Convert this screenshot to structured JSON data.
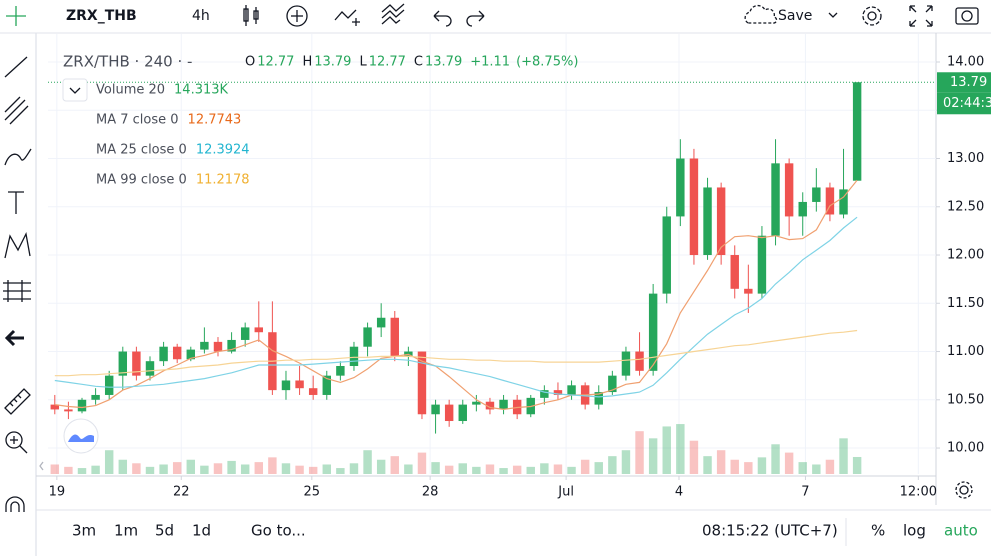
{
  "toolbar": {
    "symbol": "ZRX_THB",
    "interval": "4h",
    "save": "Save"
  },
  "bottom_bar": {
    "ranges": [
      "3m",
      "1m",
      "5d",
      "1d"
    ],
    "goto": "Go to...",
    "clock": "08:15:22 (UTC+7)",
    "options": [
      "%",
      "log",
      "auto"
    ]
  },
  "chart_data": {
    "type": "candlestick",
    "legend_title": "ZRX/THB · 240 · -",
    "ohlc_letters": [
      "O",
      "H",
      "L",
      "C"
    ],
    "change": "+1.11",
    "change_pct": "(+8.75%)",
    "countdown": "02:44:3",
    "up_color": "#26a65b",
    "down_color": "#ef5350",
    "open": [
      10.45,
      10.4,
      10.38,
      10.5,
      10.55,
      10.75,
      11.0,
      10.75,
      10.9,
      11.05,
      10.92,
      11.02,
      11.1,
      11.0,
      11.12,
      11.25,
      11.2,
      10.6,
      10.7,
      10.62,
      10.55,
      10.75,
      10.85,
      11.05,
      11.25,
      11.35,
      10.95,
      11.0,
      10.35,
      10.45,
      10.28,
      10.45,
      10.48,
      10.4,
      10.5,
      10.35,
      10.52,
      10.6,
      10.55,
      10.65,
      10.45,
      10.58,
      10.75,
      11.0,
      10.8,
      11.6,
      12.4,
      13.0,
      12.0,
      12.7,
      12.0,
      11.65,
      11.6,
      12.2,
      12.95,
      12.4,
      12.55,
      12.7,
      12.42,
      12.77
    ],
    "high": [
      10.55,
      10.48,
      10.52,
      10.62,
      10.8,
      11.05,
      11.05,
      10.95,
      11.1,
      11.08,
      11.05,
      11.25,
      11.15,
      11.2,
      11.3,
      11.52,
      11.52,
      10.8,
      10.85,
      10.75,
      10.8,
      10.9,
      11.1,
      11.3,
      11.5,
      11.42,
      11.05,
      11.0,
      10.5,
      10.5,
      10.5,
      10.55,
      10.52,
      10.55,
      10.55,
      10.55,
      10.65,
      10.68,
      10.7,
      10.68,
      10.65,
      10.8,
      11.05,
      11.2,
      11.7,
      12.5,
      13.2,
      13.1,
      12.8,
      12.75,
      12.1,
      11.9,
      12.3,
      13.2,
      13.0,
      12.65,
      12.9,
      12.75,
      13.1,
      13.79
    ],
    "low": [
      10.35,
      10.3,
      10.36,
      10.45,
      10.5,
      10.6,
      10.7,
      10.7,
      10.85,
      10.88,
      10.9,
      10.98,
      10.95,
      10.98,
      11.05,
      11.1,
      10.55,
      10.5,
      10.55,
      10.5,
      10.5,
      10.7,
      10.8,
      10.95,
      11.15,
      10.9,
      10.85,
      10.3,
      10.15,
      10.22,
      10.25,
      10.38,
      10.35,
      10.35,
      10.3,
      10.32,
      10.45,
      10.5,
      10.5,
      10.4,
      10.4,
      10.55,
      10.7,
      10.75,
      10.75,
      11.5,
      12.3,
      11.9,
      11.95,
      11.9,
      11.55,
      11.4,
      11.55,
      12.1,
      12.2,
      12.2,
      12.45,
      12.35,
      12.38,
      12.77
    ],
    "close": [
      10.4,
      10.38,
      10.5,
      10.55,
      10.75,
      11.0,
      10.75,
      10.9,
      11.05,
      10.92,
      11.02,
      11.1,
      11.0,
      11.12,
      11.25,
      11.2,
      10.6,
      10.7,
      10.62,
      10.55,
      10.75,
      10.85,
      11.05,
      11.25,
      11.35,
      10.95,
      11.0,
      10.35,
      10.45,
      10.28,
      10.45,
      10.48,
      10.4,
      10.5,
      10.35,
      10.52,
      10.6,
      10.55,
      10.65,
      10.45,
      10.58,
      10.75,
      11.0,
      10.8,
      11.6,
      12.4,
      13.0,
      12.0,
      12.7,
      12.0,
      11.65,
      11.6,
      12.2,
      12.95,
      12.4,
      12.55,
      12.7,
      12.42,
      12.68,
      13.79
    ],
    "volume": {
      "name": "Volume 20",
      "value_label": "14.313K",
      "ylim": [
        0,
        365
      ],
      "values": [
        8,
        6,
        5,
        7,
        20,
        12,
        9,
        6,
        8,
        10,
        12,
        7,
        9,
        11,
        8,
        10,
        14,
        9,
        7,
        6,
        8,
        5,
        9,
        20,
        12,
        15,
        8,
        18,
        10,
        7,
        9,
        6,
        8,
        5,
        7,
        6,
        9,
        8,
        6,
        12,
        10,
        15,
        20,
        36,
        30,
        40,
        42,
        28,
        15,
        20,
        12,
        10,
        14,
        25,
        18,
        10,
        8,
        12,
        30,
        14.313
      ]
    },
    "series": [
      {
        "name": "MA 7 close 0",
        "color": "#f0a070",
        "label_color": "#e8691a",
        "values": [
          10.45,
          10.43,
          10.42,
          10.44,
          10.5,
          10.6,
          10.65,
          10.72,
          10.8,
          10.86,
          10.93,
          10.96,
          11.0,
          11.02,
          11.07,
          11.12,
          11.01,
          10.95,
          10.88,
          10.8,
          10.72,
          10.68,
          10.73,
          10.82,
          10.93,
          10.95,
          10.97,
          10.9,
          10.85,
          10.74,
          10.62,
          10.5,
          10.42,
          10.4,
          10.42,
          10.43,
          10.47,
          10.5,
          10.55,
          10.55,
          10.56,
          10.6,
          10.66,
          10.68,
          10.86,
          11.08,
          11.4,
          11.62,
          11.84,
          12.08,
          12.19,
          12.2,
          12.18,
          12.2,
          12.16,
          12.17,
          12.26,
          12.51,
          12.6,
          12.7743
        ]
      },
      {
        "name": "MA 25 close 0",
        "color": "#7fd3e6",
        "label_color": "#22b5d0",
        "values": [
          10.7,
          10.68,
          10.66,
          10.64,
          10.63,
          10.63,
          10.64,
          10.65,
          10.66,
          10.68,
          10.7,
          10.72,
          10.75,
          10.78,
          10.82,
          10.86,
          10.86,
          10.86,
          10.86,
          10.87,
          10.88,
          10.89,
          10.9,
          10.91,
          10.92,
          10.92,
          10.91,
          10.88,
          10.85,
          10.83,
          10.8,
          10.77,
          10.74,
          10.7,
          10.66,
          10.62,
          10.58,
          10.56,
          10.55,
          10.54,
          10.53,
          10.54,
          10.56,
          10.58,
          10.65,
          10.78,
          10.92,
          11.05,
          11.18,
          11.28,
          11.38,
          11.45,
          11.55,
          11.7,
          11.82,
          11.95,
          12.05,
          12.15,
          12.28,
          12.3924
        ]
      },
      {
        "name": "MA 99 close 0",
        "color": "#f7d495",
        "label_color": "#f0b030",
        "values": [
          10.75,
          10.75,
          10.76,
          10.76,
          10.77,
          10.78,
          10.79,
          10.8,
          10.81,
          10.82,
          10.84,
          10.85,
          10.86,
          10.88,
          10.89,
          10.9,
          10.9,
          10.91,
          10.91,
          10.92,
          10.92,
          10.93,
          10.94,
          10.94,
          10.95,
          10.95,
          10.95,
          10.94,
          10.93,
          10.92,
          10.92,
          10.91,
          10.91,
          10.9,
          10.9,
          10.9,
          10.89,
          10.89,
          10.89,
          10.89,
          10.89,
          10.9,
          10.91,
          10.92,
          10.94,
          10.96,
          10.98,
          11.0,
          11.02,
          11.04,
          11.06,
          11.07,
          11.09,
          11.11,
          11.13,
          11.15,
          11.17,
          11.19,
          11.2,
          11.2178
        ]
      }
    ],
    "ylim": [
      9.731,
      14.228
    ],
    "yticks": [
      {
        "value": 14,
        "label": "14.00"
      },
      {
        "value": 13.5,
        "label": "13.50"
      },
      {
        "value": 13,
        "label": "13.00"
      },
      {
        "value": 12.5,
        "label": "12.50"
      },
      {
        "value": 12,
        "label": "12.00"
      },
      {
        "value": 11.5,
        "label": "11.50"
      },
      {
        "value": 11,
        "label": "11.00"
      },
      {
        "value": 10.5,
        "label": "10.50"
      },
      {
        "value": 10,
        "label": "10.00"
      }
    ],
    "xlim": [
      -0.5,
      64.8
    ],
    "xticks": [
      {
        "value": 0.15,
        "label": "19"
      },
      {
        "value": 9.3,
        "label": "22"
      },
      {
        "value": 18.9,
        "label": "25"
      },
      {
        "value": 27.6,
        "label": "28"
      },
      {
        "value": 37.6,
        "label": "Jul"
      },
      {
        "value": 45.9,
        "label": "4"
      },
      {
        "value": 55.2,
        "label": "7"
      },
      {
        "value": 63.5,
        "label": "12:00"
      }
    ],
    "grid": true
  }
}
